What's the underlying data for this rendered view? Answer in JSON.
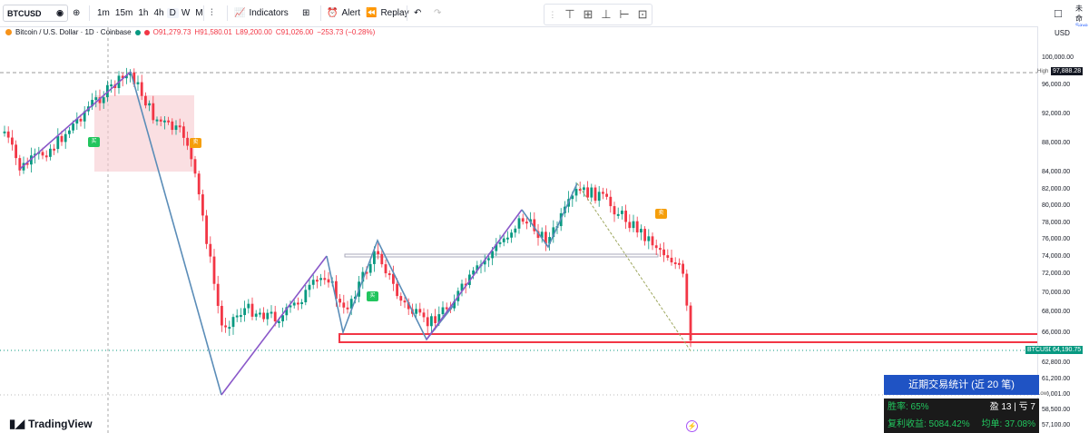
{
  "toolbar": {
    "symbol": "BTCUSD",
    "intervals": [
      "1m",
      "15m",
      "1h",
      "4h",
      "D",
      "W",
      "M"
    ],
    "active_interval": "D",
    "indicators_label": "Indicators",
    "alert_label": "Alert",
    "replay_label": "Replay",
    "right_label": "未命",
    "right_sub": "Save"
  },
  "legend": {
    "title": "Bitcoin / U.S. Dollar · 1D · Coinbase",
    "open": "O91,279.73",
    "high": "H91,580.01",
    "low": "L89,200.00",
    "close": "C91,026.00",
    "change": "−253.73 (−0.28%)"
  },
  "axis": {
    "currency": "USD",
    "ticks": [
      "100,000.00",
      "96,000.00",
      "92,000.00",
      "88,000.00",
      "84,000.00",
      "82,000.00",
      "80,000.00",
      "78,000.00",
      "76,000.00",
      "74,000.00",
      "72,000.00",
      "70,000.00",
      "68,000.00",
      "66,000.00",
      "62,800.00",
      "61,200.00",
      "60,001.00",
      "58,500.00",
      "57,100.00"
    ],
    "high_label": "High",
    "high_value": "97,888.28",
    "symbol_tag": "BTCUSD",
    "last_price": "64,190.75",
    "low_label": "Low"
  },
  "chart_data": {
    "type": "candlestick",
    "symbol": "BTCUSD",
    "ylim": [
      57100,
      101000
    ],
    "high_line": 97888.28,
    "last_price": 64190.75,
    "low_line": 60001.0,
    "markers": [
      {
        "label": "买",
        "kind": "buy"
      },
      {
        "label": "卖",
        "kind": "sell"
      },
      {
        "label": "买",
        "kind": "buy"
      },
      {
        "label": "卖",
        "kind": "sell"
      }
    ]
  },
  "stats": {
    "title": "近期交易统计 (近 20 笔)",
    "winrate": "胜率: 65%",
    "wins": "盈 13 | 亏 7",
    "compound": "复利收益: 5084.42%",
    "avg": "均单: 37.08%"
  },
  "brand": "TradingView"
}
